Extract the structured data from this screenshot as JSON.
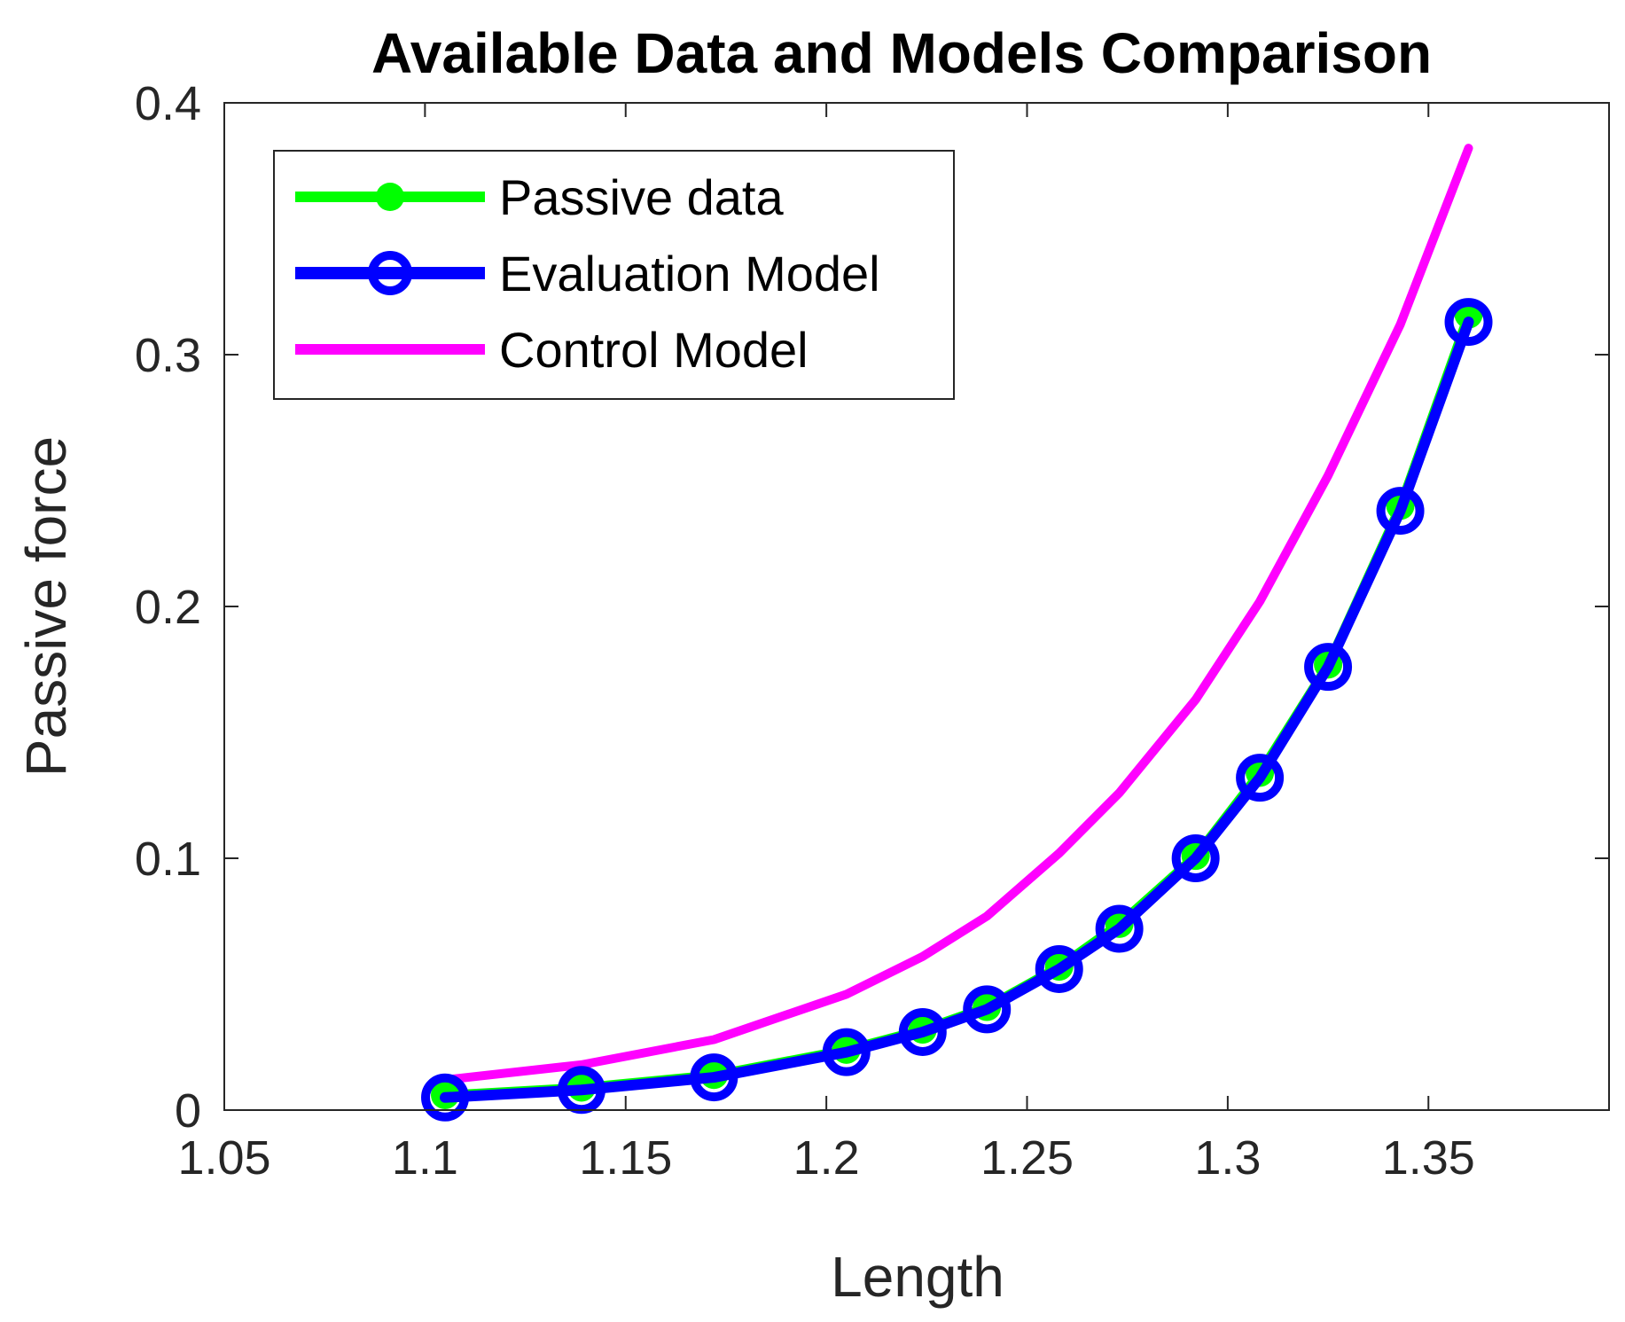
{
  "chart_data": {
    "type": "line",
    "title": "Available Data and Models Comparison",
    "xlabel": "Length",
    "ylabel": "Passive force",
    "xlim": [
      1.05,
      1.395
    ],
    "ylim": [
      0,
      0.4
    ],
    "xticks": [
      1.05,
      1.1,
      1.15,
      1.2,
      1.25,
      1.3,
      1.35
    ],
    "xtick_labels": [
      "1.05",
      "1.1",
      "1.15",
      "1.2",
      "1.25",
      "1.3",
      "1.35"
    ],
    "yticks": [
      0,
      0.1,
      0.2,
      0.3,
      0.4
    ],
    "ytick_labels": [
      "0",
      "0.1",
      "0.2",
      "0.3",
      "0.4"
    ],
    "legend_position": "top-left",
    "series": [
      {
        "name": "Passive data",
        "color": "#00ff00",
        "marker": "filled-circle",
        "x": [
          1.105,
          1.139,
          1.172,
          1.205,
          1.224,
          1.24,
          1.258,
          1.273,
          1.292,
          1.308,
          1.325,
          1.343,
          1.36
        ],
        "y": [
          0.006,
          0.009,
          0.014,
          0.024,
          0.032,
          0.041,
          0.057,
          0.074,
          0.101,
          0.134,
          0.177,
          0.24,
          0.316
        ]
      },
      {
        "name": "Evaluation Model",
        "color": "#0000ff",
        "marker": "open-circle",
        "x": [
          1.105,
          1.139,
          1.172,
          1.205,
          1.224,
          1.24,
          1.258,
          1.273,
          1.292,
          1.308,
          1.325,
          1.343,
          1.36
        ],
        "y": [
          0.005,
          0.008,
          0.013,
          0.023,
          0.031,
          0.04,
          0.056,
          0.072,
          0.1,
          0.132,
          0.176,
          0.238,
          0.313
        ]
      },
      {
        "name": "Control Model",
        "color": "#ff00ff",
        "marker": "none",
        "x": [
          1.105,
          1.139,
          1.172,
          1.205,
          1.224,
          1.24,
          1.258,
          1.273,
          1.292,
          1.308,
          1.325,
          1.343,
          1.36
        ],
        "y": [
          0.012,
          0.018,
          0.028,
          0.046,
          0.061,
          0.077,
          0.102,
          0.126,
          0.163,
          0.202,
          0.252,
          0.312,
          0.382
        ]
      }
    ]
  }
}
